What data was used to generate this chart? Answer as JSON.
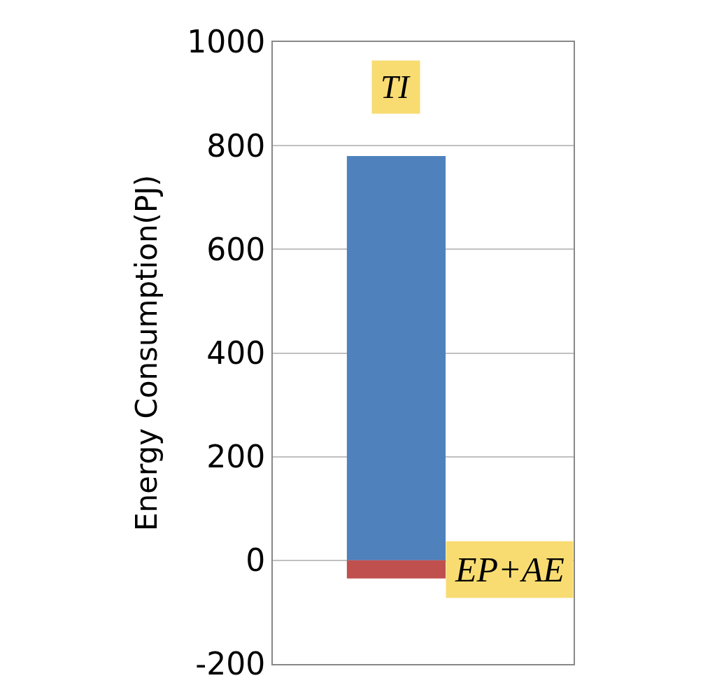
{
  "chart_data": {
    "type": "bar",
    "ylabel": "Energy Consumption(PJ)",
    "categories": [
      null
    ],
    "stacked": true,
    "series": [
      {
        "name": "TI",
        "color": "#4f81bd",
        "values": [
          780
        ]
      },
      {
        "name": "EP+AE",
        "color": "#c0504d",
        "values": [
          -35
        ]
      }
    ],
    "ylim": [
      -200,
      1000
    ],
    "yticks": [
      -200,
      0,
      200,
      400,
      600,
      800,
      1000
    ],
    "grid": "y"
  }
}
